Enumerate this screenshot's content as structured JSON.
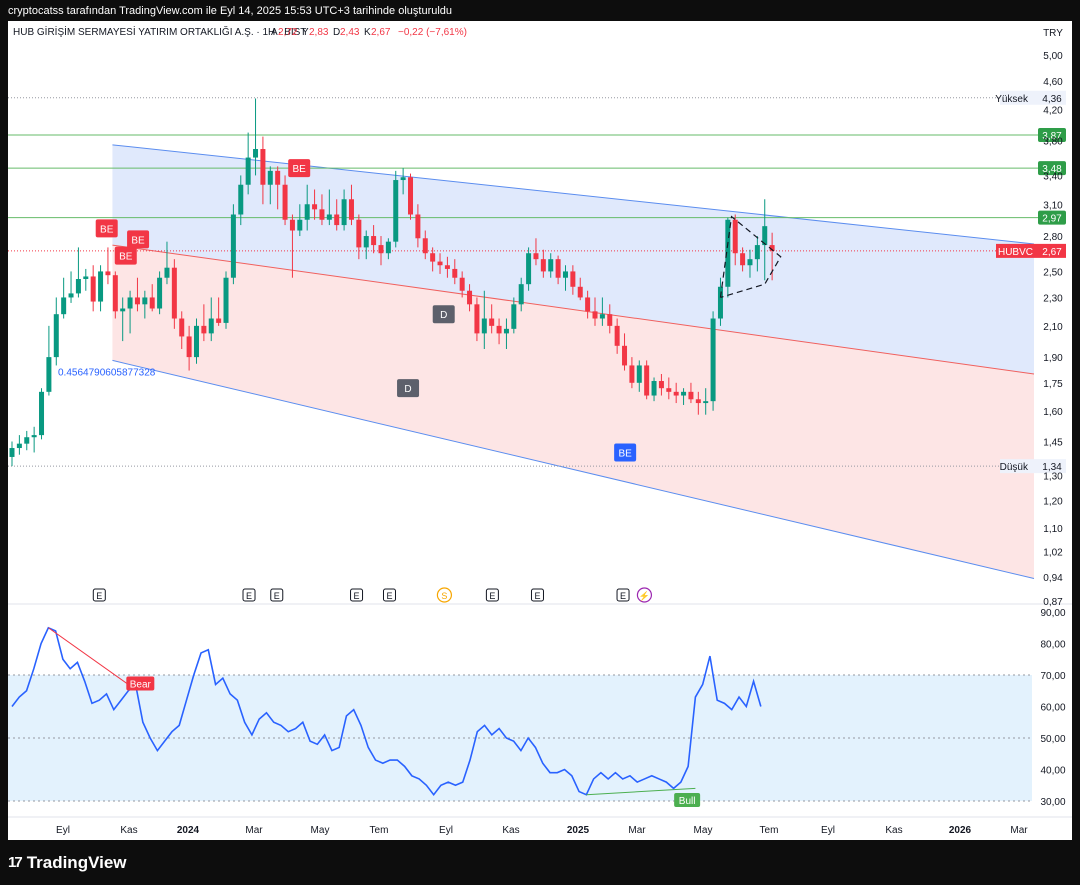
{
  "header": {
    "snapshot_text": "cryptocatss tarafından TradingView.com ile Eyl 14, 2025 15:53 UTC+3 tarihinde oluşturuldu",
    "symbol_name": "HUB GİRİŞİM SERMAYESİ YATIRIM ORTAKLIĞI A.Ş. · 1H · BIST",
    "ohlc": [
      {
        "label": "A",
        "value": "2,72"
      },
      {
        "label": "Y",
        "value": "2,83"
      },
      {
        "label": "D",
        "value": "2,43"
      },
      {
        "label": "K",
        "value": "2,67"
      }
    ],
    "change": "−0,22 (−7,61%)",
    "currency": "TRY"
  },
  "colors": {
    "up": "#089981",
    "down": "#f23645",
    "channel_line": "#5b8def",
    "upper_fill": "#dbe5fb",
    "lower_fill": "#fde0e0",
    "mid_line": "#f0605e",
    "hline": "#66bb6a",
    "rsi_line": "#2962ff",
    "rsi_band": "#e3f2fd",
    "label_gray": "#5d606b",
    "label_blue": "#2962ff",
    "label_red": "#f23645"
  },
  "chart_data": [
    {
      "type": "candlestick",
      "title": "HUB GİRİŞİM SERMAYESİ YATIRIM ORTAKLIĞI A.Ş. · 1H · BIST",
      "x_tick_labels": [
        "Eyl",
        "Kas",
        "2024",
        "Mar",
        "May",
        "Tem",
        "Eyl",
        "Kas",
        "2025",
        "Mar",
        "May",
        "Tem",
        "Eyl",
        "Kas",
        "2026",
        "Mar"
      ],
      "y_tick_labels": [
        "5,00",
        "4,60",
        "4,20",
        "3,80",
        "3,40",
        "3,10",
        "2,80",
        "2,50",
        "2,30",
        "2,10",
        "1,90",
        "1,75",
        "1,60",
        "1,45",
        "1,30",
        "1,20",
        "1,10",
        "1,02",
        "0,94",
        "0,87"
      ],
      "y_scale": "log",
      "ylim": [
        0.87,
        5.0
      ],
      "price_lines": [
        {
          "value": 3.87,
          "label": "3,87"
        },
        {
          "value": 3.48,
          "label": "3,48"
        },
        {
          "value": 2.97,
          "label": "2,97"
        }
      ],
      "high_line": {
        "label": "Yüksek",
        "value": 4.36,
        "text": "4,36"
      },
      "low_line": {
        "label": "Düşük",
        "value": 1.34,
        "text": "1,34"
      },
      "last_price": {
        "symbol": "HUBVC",
        "value": 2.67,
        "text": "2,67"
      },
      "channel_annotation": "0.4564790605877328",
      "markers": [
        {
          "text": "BE",
          "style": "red",
          "x": 0.154,
          "price": 2.87
        },
        {
          "text": "BE",
          "style": "red",
          "x": 0.185,
          "price": 2.63
        },
        {
          "text": "BE",
          "style": "red",
          "x": 0.205,
          "price": 2.77
        },
        {
          "text": "BE",
          "style": "red",
          "x": 0.467,
          "price": 3.48
        },
        {
          "text": "D",
          "style": "gray",
          "x": 0.644,
          "price": 1.72
        },
        {
          "text": "D",
          "style": "gray",
          "x": 0.702,
          "price": 2.18
        },
        {
          "text": "BE",
          "style": "blue",
          "x": 0.997,
          "price": 1.4
        }
      ],
      "events": [
        {
          "x": 0.151,
          "text": "E"
        },
        {
          "x": 0.41,
          "text": "E"
        },
        {
          "x": 0.458,
          "text": "E"
        },
        {
          "x": 0.596,
          "text": "E"
        },
        {
          "x": 0.653,
          "text": "E"
        },
        {
          "x": 0.748,
          "text": "S"
        },
        {
          "x": 0.831,
          "text": "E"
        },
        {
          "x": 0.909,
          "text": "E"
        },
        {
          "x": 1.057,
          "text": "E"
        },
        {
          "x": 1.094,
          "text": "⚡"
        }
      ],
      "candles": [
        {
          "x": 0.0,
          "o": 1.38,
          "h": 1.45,
          "l": 1.34,
          "c": 1.42
        },
        {
          "x": 0.012,
          "o": 1.42,
          "h": 1.48,
          "l": 1.39,
          "c": 1.44
        },
        {
          "x": 0.024,
          "o": 1.44,
          "h": 1.5,
          "l": 1.41,
          "c": 1.47
        },
        {
          "x": 0.036,
          "o": 1.47,
          "h": 1.52,
          "l": 1.4,
          "c": 1.48
        },
        {
          "x": 0.048,
          "o": 1.48,
          "h": 1.72,
          "l": 1.46,
          "c": 1.7
        },
        {
          "x": 0.06,
          "o": 1.7,
          "h": 2.1,
          "l": 1.68,
          "c": 1.9
        },
        {
          "x": 0.072,
          "o": 1.9,
          "h": 2.3,
          "l": 1.85,
          "c": 2.18
        },
        {
          "x": 0.084,
          "o": 2.18,
          "h": 2.45,
          "l": 2.15,
          "c": 2.3
        },
        {
          "x": 0.096,
          "o": 2.3,
          "h": 2.5,
          "l": 2.26,
          "c": 2.33
        },
        {
          "x": 0.108,
          "o": 2.33,
          "h": 2.7,
          "l": 2.3,
          "c": 2.44
        },
        {
          "x": 0.12,
          "o": 2.44,
          "h": 2.52,
          "l": 2.35,
          "c": 2.46
        },
        {
          "x": 0.132,
          "o": 2.46,
          "h": 2.55,
          "l": 2.2,
          "c": 2.27
        },
        {
          "x": 0.144,
          "o": 2.27,
          "h": 2.55,
          "l": 2.2,
          "c": 2.5
        },
        {
          "x": 0.156,
          "o": 2.5,
          "h": 2.7,
          "l": 2.4,
          "c": 2.47
        },
        {
          "x": 0.168,
          "o": 2.47,
          "h": 2.5,
          "l": 2.15,
          "c": 2.2
        },
        {
          "x": 0.18,
          "o": 2.2,
          "h": 2.3,
          "l": 2.0,
          "c": 2.22
        },
        {
          "x": 0.192,
          "o": 2.22,
          "h": 2.35,
          "l": 2.05,
          "c": 2.3
        },
        {
          "x": 0.204,
          "o": 2.3,
          "h": 2.45,
          "l": 2.2,
          "c": 2.25
        },
        {
          "x": 0.216,
          "o": 2.25,
          "h": 2.35,
          "l": 2.15,
          "c": 2.3
        },
        {
          "x": 0.228,
          "o": 2.3,
          "h": 2.4,
          "l": 2.2,
          "c": 2.22
        },
        {
          "x": 0.24,
          "o": 2.22,
          "h": 2.5,
          "l": 2.18,
          "c": 2.45
        },
        {
          "x": 0.252,
          "o": 2.45,
          "h": 2.75,
          "l": 2.4,
          "c": 2.53
        },
        {
          "x": 0.264,
          "o": 2.53,
          "h": 2.6,
          "l": 2.08,
          "c": 2.15
        },
        {
          "x": 0.276,
          "o": 2.15,
          "h": 2.2,
          "l": 1.95,
          "c": 2.03
        },
        {
          "x": 0.288,
          "o": 2.03,
          "h": 2.1,
          "l": 1.82,
          "c": 1.9
        },
        {
          "x": 0.3,
          "o": 1.9,
          "h": 2.15,
          "l": 1.86,
          "c": 2.1
        },
        {
          "x": 0.312,
          "o": 2.1,
          "h": 2.25,
          "l": 2.0,
          "c": 2.05
        },
        {
          "x": 0.324,
          "o": 2.05,
          "h": 2.3,
          "l": 2.0,
          "c": 2.15
        },
        {
          "x": 0.336,
          "o": 2.15,
          "h": 2.3,
          "l": 2.1,
          "c": 2.12
        },
        {
          "x": 0.348,
          "o": 2.12,
          "h": 2.5,
          "l": 2.08,
          "c": 2.45
        },
        {
          "x": 0.36,
          "o": 2.45,
          "h": 3.1,
          "l": 2.4,
          "c": 3.0
        },
        {
          "x": 0.372,
          "o": 3.0,
          "h": 3.4,
          "l": 2.9,
          "c": 3.3
        },
        {
          "x": 0.384,
          "o": 3.3,
          "h": 3.9,
          "l": 3.2,
          "c": 3.6
        },
        {
          "x": 0.396,
          "o": 3.6,
          "h": 4.35,
          "l": 3.4,
          "c": 3.7
        },
        {
          "x": 0.408,
          "o": 3.7,
          "h": 3.85,
          "l": 3.1,
          "c": 3.3
        },
        {
          "x": 0.42,
          "o": 3.3,
          "h": 3.5,
          "l": 3.1,
          "c": 3.45
        },
        {
          "x": 0.432,
          "o": 3.45,
          "h": 3.5,
          "l": 3.05,
          "c": 3.3
        },
        {
          "x": 0.444,
          "o": 3.3,
          "h": 3.4,
          "l": 2.9,
          "c": 2.95
        },
        {
          "x": 0.456,
          "o": 2.95,
          "h": 3.0,
          "l": 2.45,
          "c": 2.85
        },
        {
          "x": 0.468,
          "o": 2.85,
          "h": 3.1,
          "l": 2.8,
          "c": 2.95
        },
        {
          "x": 0.48,
          "o": 2.95,
          "h": 3.3,
          "l": 2.85,
          "c": 3.1
        },
        {
          "x": 0.492,
          "o": 3.1,
          "h": 3.25,
          "l": 2.95,
          "c": 3.05
        },
        {
          "x": 0.504,
          "o": 3.05,
          "h": 3.2,
          "l": 2.9,
          "c": 2.95
        },
        {
          "x": 0.516,
          "o": 2.95,
          "h": 3.25,
          "l": 2.9,
          "c": 3.0
        },
        {
          "x": 0.528,
          "o": 3.0,
          "h": 3.15,
          "l": 2.85,
          "c": 2.9
        },
        {
          "x": 0.54,
          "o": 2.9,
          "h": 3.25,
          "l": 2.85,
          "c": 3.15
        },
        {
          "x": 0.552,
          "o": 3.15,
          "h": 3.3,
          "l": 2.9,
          "c": 2.95
        },
        {
          "x": 0.564,
          "o": 2.95,
          "h": 3.0,
          "l": 2.6,
          "c": 2.7
        },
        {
          "x": 0.576,
          "o": 2.7,
          "h": 2.85,
          "l": 2.6,
          "c": 2.8
        },
        {
          "x": 0.588,
          "o": 2.8,
          "h": 2.9,
          "l": 2.65,
          "c": 2.72
        },
        {
          "x": 0.6,
          "o": 2.72,
          "h": 2.8,
          "l": 2.55,
          "c": 2.65
        },
        {
          "x": 0.612,
          "o": 2.65,
          "h": 2.78,
          "l": 2.6,
          "c": 2.75
        },
        {
          "x": 0.624,
          "o": 2.75,
          "h": 3.45,
          "l": 2.7,
          "c": 3.35
        },
        {
          "x": 0.636,
          "o": 3.35,
          "h": 3.48,
          "l": 3.2,
          "c": 3.38
        },
        {
          "x": 0.648,
          "o": 3.38,
          "h": 3.42,
          "l": 2.95,
          "c": 3.0
        },
        {
          "x": 0.66,
          "o": 3.0,
          "h": 3.1,
          "l": 2.7,
          "c": 2.78
        },
        {
          "x": 0.672,
          "o": 2.78,
          "h": 2.85,
          "l": 2.6,
          "c": 2.65
        },
        {
          "x": 0.684,
          "o": 2.65,
          "h": 2.7,
          "l": 2.5,
          "c": 2.58
        },
        {
          "x": 0.696,
          "o": 2.58,
          "h": 2.65,
          "l": 2.48,
          "c": 2.55
        },
        {
          "x": 0.708,
          "o": 2.55,
          "h": 2.62,
          "l": 2.45,
          "c": 2.52
        },
        {
          "x": 0.72,
          "o": 2.52,
          "h": 2.6,
          "l": 2.4,
          "c": 2.45
        },
        {
          "x": 0.732,
          "o": 2.45,
          "h": 2.5,
          "l": 2.3,
          "c": 2.35
        },
        {
          "x": 0.744,
          "o": 2.35,
          "h": 2.4,
          "l": 2.2,
          "c": 2.25
        },
        {
          "x": 0.756,
          "o": 2.25,
          "h": 2.3,
          "l": 2.0,
          "c": 2.05
        },
        {
          "x": 0.768,
          "o": 2.05,
          "h": 2.35,
          "l": 1.95,
          "c": 2.15
        },
        {
          "x": 0.78,
          "o": 2.15,
          "h": 2.25,
          "l": 2.05,
          "c": 2.1
        },
        {
          "x": 0.792,
          "o": 2.1,
          "h": 2.15,
          "l": 1.98,
          "c": 2.05
        },
        {
          "x": 0.804,
          "o": 2.05,
          "h": 2.15,
          "l": 1.95,
          "c": 2.08
        },
        {
          "x": 0.816,
          "o": 2.08,
          "h": 2.3,
          "l": 2.05,
          "c": 2.25
        },
        {
          "x": 0.828,
          "o": 2.25,
          "h": 2.45,
          "l": 2.2,
          "c": 2.4
        },
        {
          "x": 0.84,
          "o": 2.4,
          "h": 2.7,
          "l": 2.35,
          "c": 2.65
        },
        {
          "x": 0.852,
          "o": 2.65,
          "h": 2.78,
          "l": 2.55,
          "c": 2.6
        },
        {
          "x": 0.864,
          "o": 2.6,
          "h": 2.68,
          "l": 2.45,
          "c": 2.5
        },
        {
          "x": 0.876,
          "o": 2.5,
          "h": 2.65,
          "l": 2.45,
          "c": 2.6
        },
        {
          "x": 0.888,
          "o": 2.6,
          "h": 2.63,
          "l": 2.4,
          "c": 2.45
        },
        {
          "x": 0.9,
          "o": 2.45,
          "h": 2.55,
          "l": 2.35,
          "c": 2.5
        },
        {
          "x": 0.912,
          "o": 2.5,
          "h": 2.55,
          "l": 2.32,
          "c": 2.38
        },
        {
          "x": 0.924,
          "o": 2.38,
          "h": 2.45,
          "l": 2.28,
          "c": 2.3
        },
        {
          "x": 0.936,
          "o": 2.3,
          "h": 2.35,
          "l": 2.15,
          "c": 2.2
        },
        {
          "x": 0.948,
          "o": 2.2,
          "h": 2.3,
          "l": 2.1,
          "c": 2.15
        },
        {
          "x": 0.96,
          "o": 2.15,
          "h": 2.3,
          "l": 2.1,
          "c": 2.18
        },
        {
          "x": 0.972,
          "o": 2.18,
          "h": 2.25,
          "l": 2.05,
          "c": 2.1
        },
        {
          "x": 0.984,
          "o": 2.1,
          "h": 2.15,
          "l": 1.92,
          "c": 1.97
        },
        {
          "x": 0.996,
          "o": 1.97,
          "h": 2.05,
          "l": 1.82,
          "c": 1.85
        },
        {
          "x": 1.008,
          "o": 1.85,
          "h": 1.9,
          "l": 1.72,
          "c": 1.75
        },
        {
          "x": 1.02,
          "o": 1.75,
          "h": 1.88,
          "l": 1.7,
          "c": 1.85
        },
        {
          "x": 1.032,
          "o": 1.85,
          "h": 1.88,
          "l": 1.66,
          "c": 1.68
        },
        {
          "x": 1.044,
          "o": 1.68,
          "h": 1.78,
          "l": 1.65,
          "c": 1.76
        },
        {
          "x": 1.056,
          "o": 1.76,
          "h": 1.8,
          "l": 1.68,
          "c": 1.72
        },
        {
          "x": 1.068,
          "o": 1.72,
          "h": 1.78,
          "l": 1.66,
          "c": 1.7
        },
        {
          "x": 1.08,
          "o": 1.7,
          "h": 1.75,
          "l": 1.64,
          "c": 1.68
        },
        {
          "x": 1.092,
          "o": 1.68,
          "h": 1.72,
          "l": 1.63,
          "c": 1.7
        },
        {
          "x": 1.104,
          "o": 1.7,
          "h": 1.75,
          "l": 1.64,
          "c": 1.66
        },
        {
          "x": 1.116,
          "o": 1.66,
          "h": 1.7,
          "l": 1.58,
          "c": 1.64
        },
        {
          "x": 1.128,
          "o": 1.64,
          "h": 1.72,
          "l": 1.58,
          "c": 1.65
        },
        {
          "x": 1.14,
          "o": 1.65,
          "h": 2.2,
          "l": 1.6,
          "c": 2.15
        },
        {
          "x": 1.152,
          "o": 2.15,
          "h": 2.45,
          "l": 2.1,
          "c": 2.38
        },
        {
          "x": 1.164,
          "o": 2.38,
          "h": 2.97,
          "l": 2.3,
          "c": 2.95
        },
        {
          "x": 1.176,
          "o": 2.95,
          "h": 3.0,
          "l": 2.55,
          "c": 2.65
        },
        {
          "x": 1.188,
          "o": 2.65,
          "h": 2.7,
          "l": 2.5,
          "c": 2.55
        },
        {
          "x": 1.2,
          "o": 2.55,
          "h": 2.68,
          "l": 2.45,
          "c": 2.6
        },
        {
          "x": 1.212,
          "o": 2.6,
          "h": 2.8,
          "l": 2.5,
          "c": 2.72
        },
        {
          "x": 1.224,
          "o": 2.72,
          "h": 3.15,
          "l": 2.43,
          "c": 2.89
        },
        {
          "x": 1.236,
          "o": 2.72,
          "h": 2.83,
          "l": 2.43,
          "c": 2.67
        }
      ],
      "rsi": {
        "y_tick_labels": [
          "90,00",
          "80,00",
          "70,00",
          "60,00",
          "50,00",
          "40,00",
          "30,00"
        ],
        "ylim": [
          30,
          90
        ],
        "band": [
          30,
          70
        ],
        "divergence_labels": [
          {
            "text": "Bear",
            "x": 0.235,
            "value": 67
          },
          {
            "text": "Bull",
            "x": 1.095,
            "value": 30
          }
        ],
        "values": [
          60,
          63,
          65,
          72,
          80,
          85,
          84,
          75,
          72,
          74,
          68,
          61,
          62,
          64,
          59,
          62,
          65,
          67,
          55,
          50,
          46,
          49,
          52,
          54,
          62,
          70,
          77,
          78,
          67,
          69,
          64,
          62,
          55,
          51,
          56,
          58,
          55,
          54,
          52,
          53,
          55,
          49,
          48,
          51,
          46,
          47,
          57,
          59,
          54,
          47,
          43,
          42,
          43,
          43,
          41,
          38,
          37,
          35,
          32,
          35,
          36,
          35,
          36,
          43,
          52,
          54,
          51,
          53,
          50,
          49,
          46,
          50,
          47,
          42,
          39,
          39,
          40,
          38,
          33,
          32,
          37,
          39,
          37,
          39,
          37,
          38,
          36,
          37,
          38,
          37,
          36,
          34,
          36,
          41,
          63,
          67,
          76,
          62,
          61,
          59,
          63,
          60,
          68,
          60
        ]
      }
    }
  ]
}
